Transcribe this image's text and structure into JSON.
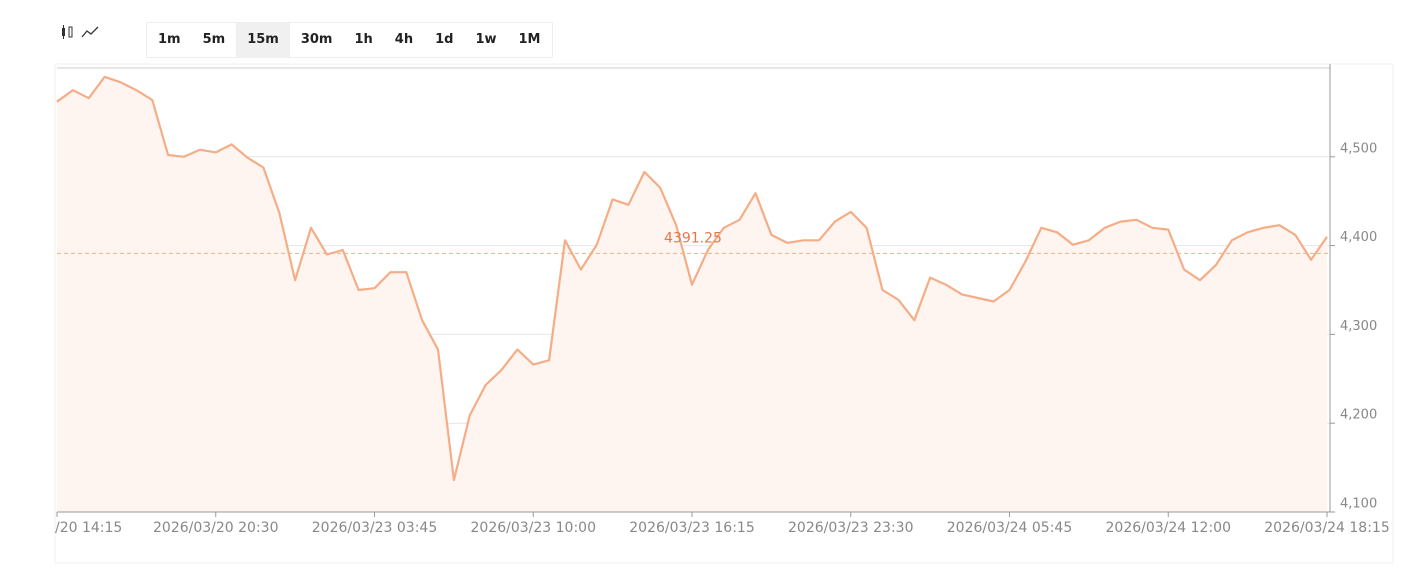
{
  "toolbar": {
    "intervals": [
      "1m",
      "5m",
      "15m",
      "30m",
      "1h",
      "4h",
      "1d",
      "1w",
      "1M"
    ],
    "active": 2
  },
  "chart_data": {
    "type": "line",
    "color": "#f4ad87",
    "area_color": "#fef5f0",
    "categories": [
      "/20 14:15",
      null,
      null,
      null,
      null,
      null,
      null,
      null,
      null,
      null,
      "2026/03/20 20:30",
      null,
      null,
      null,
      null,
      null,
      null,
      null,
      null,
      null,
      "2026/03/23 03:45",
      null,
      null,
      null,
      null,
      null,
      null,
      null,
      null,
      null,
      "2026/03/23 10:00",
      null,
      null,
      null,
      null,
      null,
      null,
      null,
      null,
      null,
      "2026/03/23 16:15",
      null,
      null,
      null,
      null,
      null,
      null,
      null,
      null,
      null,
      "2026/03/23 23:30",
      null,
      null,
      null,
      null,
      null,
      null,
      null,
      null,
      null,
      "2026/03/24 05:45",
      null,
      null,
      null,
      null,
      null,
      null,
      null,
      null,
      null,
      "2026/03/24 12:00",
      null,
      null,
      null,
      null,
      null,
      null,
      null,
      null,
      null,
      "2026/03/24 18:15"
    ],
    "values": [
      4562,
      4575,
      4566,
      4590,
      4584,
      4575,
      4564,
      4502,
      4500,
      4508,
      4505,
      4514,
      4499,
      4488,
      4437,
      4361,
      4420,
      4390,
      4395,
      4350,
      4352,
      4370,
      4370,
      4316,
      4283,
      4136,
      4209,
      4243,
      4260,
      4283,
      4266,
      4271,
      4406,
      4373,
      4401,
      4452,
      4446,
      4483,
      4465,
      4423,
      4356,
      4395,
      4420,
      4429,
      4459,
      4412,
      4403,
      4406,
      4406,
      4427,
      4438,
      4420,
      4350,
      4339,
      4316,
      4364,
      4356,
      4345,
      4341,
      4337,
      4350,
      4382,
      4420,
      4415,
      4401,
      4406,
      4420,
      4427,
      4429,
      4420,
      4418,
      4373,
      4361,
      4378,
      4406,
      4415,
      4420,
      4423,
      4412,
      4384,
      4410
    ],
    "ylim": [
      4100,
      4600
    ],
    "yticks": [
      {
        "value": 4100,
        "label": "4,100"
      },
      {
        "value": 4200,
        "label": "4,200"
      },
      {
        "value": 4300,
        "label": "4,300"
      },
      {
        "value": 4400,
        "label": "4,400"
      },
      {
        "value": 4500,
        "label": "4,500"
      }
    ],
    "grid": true,
    "current_price": 4391.25
  }
}
